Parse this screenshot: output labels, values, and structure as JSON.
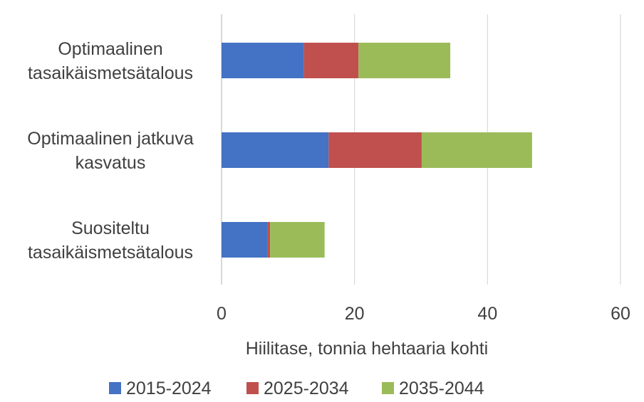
{
  "chart_data": {
    "type": "bar",
    "orientation": "horizontal",
    "stacked": true,
    "title": "",
    "xlabel": "Hiilitase, tonnia hehtaaria kohti",
    "ylabel": "",
    "xlim": [
      0,
      60
    ],
    "xticks": [
      0,
      20,
      40,
      60
    ],
    "grid": true,
    "legend_position": "bottom",
    "categories": [
      [
        "Optimaalinen",
        "tasaikäismetsätalous"
      ],
      [
        "Optimaalinen jatkuva",
        "kasvatus"
      ],
      [
        "Suositeltu",
        "tasaikäismetsätalous"
      ]
    ],
    "series": [
      {
        "name": "2015-2024",
        "color": "#4472C4",
        "values": [
          12.4,
          16.1,
          6.9
        ]
      },
      {
        "name": "2025-2034",
        "color": "#C0504D",
        "values": [
          8.2,
          14.0,
          0.4
        ]
      },
      {
        "name": "2035-2044",
        "color": "#9BBB59",
        "values": [
          13.8,
          16.6,
          8.2
        ]
      }
    ]
  }
}
